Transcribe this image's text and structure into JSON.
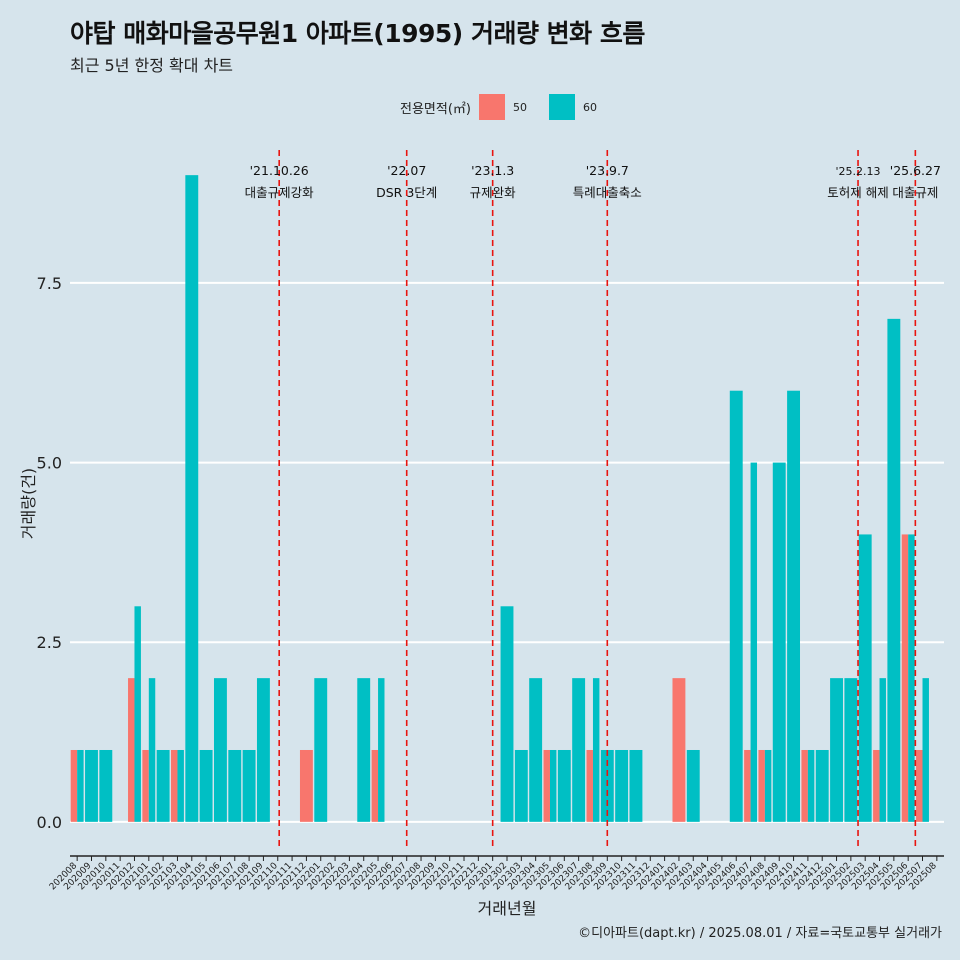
{
  "title": "야탑 매화마을공무원1 아파트(1995) 거래량 변화 흐름",
  "subtitle": "최근 5년 한정 확대 차트",
  "caption": "©디아파트(dapt.kr) / 2025.08.01 / 자료=국토교통부 실거래가",
  "legend": {
    "title": "전용면적(㎡)",
    "items": [
      {
        "label": "50",
        "color": "#f8766d"
      },
      {
        "label": "60",
        "color": "#00bfc4"
      }
    ]
  },
  "chart_data": {
    "type": "bar",
    "xlabel": "거래년월",
    "ylabel": "거래량(건)",
    "ylim": [
      -0.35,
      9.35
    ],
    "yticks": [
      0,
      2.5,
      5,
      7.5
    ],
    "ytick_labels": [
      "0.0",
      "2.5",
      "5.0",
      "7.5"
    ],
    "grid": true,
    "legend_position": "top",
    "categories": [
      "202008",
      "202009",
      "202010",
      "202011",
      "202012",
      "202101",
      "202102",
      "202103",
      "202104",
      "202105",
      "202106",
      "202107",
      "202108",
      "202109",
      "202110",
      "202111",
      "202112",
      "202201",
      "202202",
      "202203",
      "202204",
      "202205",
      "202206",
      "202207",
      "202208",
      "202209",
      "202210",
      "202211",
      "202212",
      "202301",
      "202302",
      "202303",
      "202304",
      "202305",
      "202306",
      "202307",
      "202308",
      "202309",
      "202310",
      "202311",
      "202312",
      "202401",
      "202402",
      "202403",
      "202404",
      "202405",
      "202406",
      "202407",
      "202408",
      "202409",
      "202410",
      "202411",
      "202412",
      "202501",
      "202502",
      "202503",
      "202504",
      "202505",
      "202506",
      "202507",
      "202508"
    ],
    "series": [
      {
        "name": "50",
        "color": "#f8766d",
        "values": [
          1,
          0,
          0,
          0,
          2,
          1,
          0,
          1,
          0,
          0,
          0,
          0,
          0,
          0,
          0,
          0,
          1,
          0,
          0,
          0,
          0,
          1,
          0,
          0,
          0,
          0,
          0,
          0,
          0,
          0,
          0,
          0,
          0,
          1,
          0,
          0,
          1,
          0,
          0,
          0,
          0,
          0,
          2,
          0,
          0,
          0,
          0,
          1,
          1,
          0,
          0,
          1,
          0,
          0,
          0,
          0,
          1,
          0,
          4,
          1,
          0
        ]
      },
      {
        "name": "60",
        "color": "#00bfc4",
        "values": [
          1,
          1,
          1,
          0,
          3,
          2,
          1,
          1,
          9,
          1,
          2,
          1,
          1,
          2,
          0,
          0,
          0,
          2,
          0,
          0,
          2,
          2,
          0,
          0,
          0,
          0,
          0,
          0,
          0,
          0,
          3,
          1,
          2,
          1,
          1,
          2,
          2,
          1,
          1,
          1,
          0,
          0,
          0,
          1,
          0,
          0,
          6,
          5,
          1,
          5,
          6,
          1,
          1,
          2,
          2,
          4,
          2,
          7,
          4,
          2,
          0
        ]
      }
    ],
    "events": [
      {
        "date": "'21.10.26",
        "label": "대출규제강화",
        "index": 14.1
      },
      {
        "date": "'22.07",
        "label": "DSR 3단계",
        "index": 23.0
      },
      {
        "date": "'23.1.3",
        "label": "규제완화",
        "index": 29.0
      },
      {
        "date": "'23.9.7",
        "label": "특례대출축소",
        "index": 37.0
      },
      {
        "date": "'25.2.13",
        "label": "토허제 해제",
        "index": 54.5
      },
      {
        "date": "'25.6.27",
        "label": "대출규제",
        "index": 58.5
      }
    ]
  }
}
